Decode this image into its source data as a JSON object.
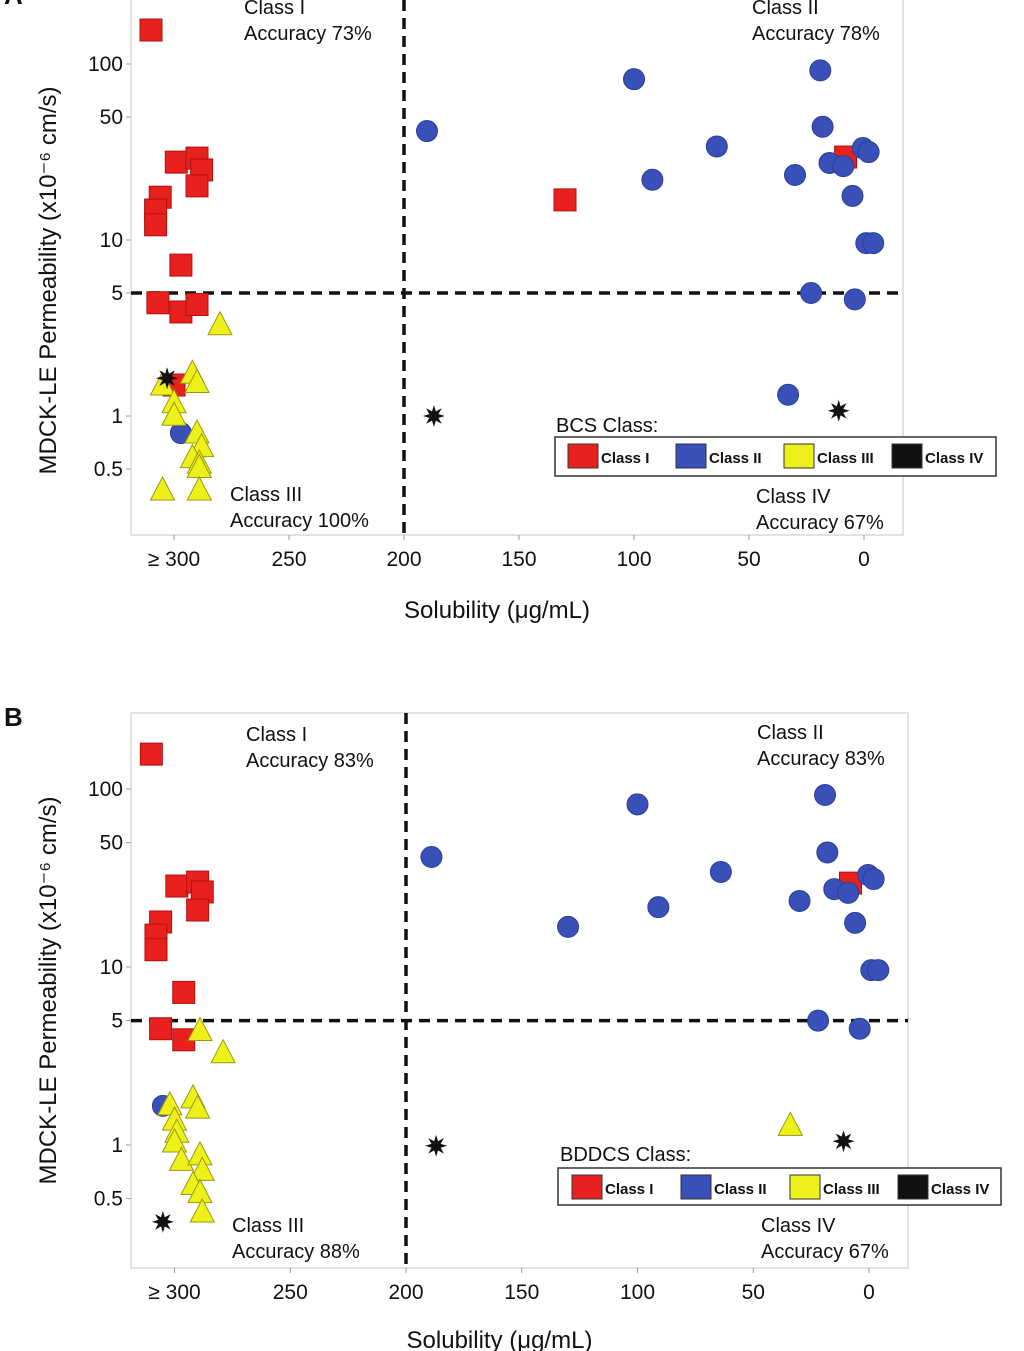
{
  "chart_data": [
    {
      "type": "scatter",
      "panel_label": "A",
      "xlabel": "Solubility (μg/mL)",
      "ylabel": "MDCK-LE Permeability (x10⁻⁶ cm/s)",
      "x_reversed": true,
      "y_scale": "log",
      "xlim": [
        -17,
        319
      ],
      "ylim": [
        0.21,
        231
      ],
      "x_ticks": [
        {
          "value": 300,
          "label": "≥ 300"
        },
        {
          "value": 250,
          "label": "250"
        },
        {
          "value": 200,
          "label": "200"
        },
        {
          "value": 150,
          "label": "150"
        },
        {
          "value": 100,
          "label": "100"
        },
        {
          "value": 50,
          "label": "50"
        },
        {
          "value": 0,
          "label": "0"
        }
      ],
      "y_ticks": [
        {
          "value": 100,
          "label": "100"
        },
        {
          "value": 50,
          "label": "50"
        },
        {
          "value": 10,
          "label": "10"
        },
        {
          "value": 5,
          "label": "5"
        },
        {
          "value": 1,
          "label": "1"
        },
        {
          "value": 0.5,
          "label": "0.5"
        }
      ],
      "thresholds": {
        "x": 200,
        "y": 5
      },
      "grid": false,
      "legend": {
        "title": "BCS Class:",
        "placement": "bottom-right"
      },
      "annotations": [
        {
          "quadrant": "top-left",
          "lines": [
            "Class I",
            "Accuracy 73%"
          ]
        },
        {
          "quadrant": "top-right",
          "lines": [
            "Class II",
            "Accuracy 78%"
          ]
        },
        {
          "quadrant": "bottom-left",
          "lines": [
            "Class III",
            "Accuracy 100%"
          ]
        },
        {
          "quadrant": "bottom-right",
          "lines": [
            "Class IV",
            "Accuracy 67%"
          ]
        }
      ],
      "series": [
        {
          "name": "Class I",
          "marker": "square",
          "color": "#e8211f",
          "points": [
            [
              310,
              156
            ],
            [
              299,
              27.7
            ],
            [
              290,
              29.2
            ],
            [
              288,
              25
            ],
            [
              290,
              20.3
            ],
            [
              306,
              17.5
            ],
            [
              308,
              14.8
            ],
            [
              308,
              12.2
            ],
            [
              297,
              7.2
            ],
            [
              307,
              4.4
            ],
            [
              297,
              3.9
            ],
            [
              290,
              4.3
            ],
            [
              300,
              1.5
            ],
            [
              130,
              16.9
            ],
            [
              8,
              29.6
            ]
          ]
        },
        {
          "name": "Class II",
          "marker": "circle",
          "color": "#3850b8",
          "points": [
            [
              190,
              41.6
            ],
            [
              100,
              82
            ],
            [
              92,
              22
            ],
            [
              64,
              34
            ],
            [
              30,
              23.4
            ],
            [
              19,
              92
            ],
            [
              18,
              44
            ],
            [
              15,
              27.4
            ],
            [
              9,
              26.3
            ],
            [
              5,
              17.8
            ],
            [
              0.5,
              33.3
            ],
            [
              -2,
              31.6
            ],
            [
              -1,
              9.6
            ],
            [
              -4,
              9.6
            ],
            [
              23,
              5.0
            ],
            [
              4,
              4.6
            ],
            [
              33,
              1.32
            ],
            [
              297,
              0.8
            ]
          ]
        },
        {
          "name": "Class III",
          "marker": "triangle",
          "color": "#eef01a",
          "points": [
            [
              280,
              3.3
            ],
            [
              292,
              1.75
            ],
            [
              290,
              1.55
            ],
            [
              305,
              1.5
            ],
            [
              300,
              1.19
            ],
            [
              300,
              1.01
            ],
            [
              290,
              0.8
            ],
            [
              288,
              0.67
            ],
            [
              292,
              0.58
            ],
            [
              289,
              0.54
            ],
            [
              289,
              0.51
            ],
            [
              305,
              0.38
            ],
            [
              289,
              0.38
            ]
          ]
        },
        {
          "name": "Class IV",
          "marker": "star",
          "color": "#111111",
          "points": [
            [
              303,
              1.64
            ],
            [
              187,
              1.0
            ],
            [
              11,
              1.07
            ]
          ]
        }
      ]
    },
    {
      "type": "scatter",
      "panel_label": "B",
      "xlabel": "Solubility (μg/mL)",
      "ylabel": "MDCK-LE Permeability (x10⁻⁶ cm/s)",
      "x_reversed": true,
      "y_scale": "log",
      "xlim": [
        -17,
        319
      ],
      "ylim": [
        0.2,
        267
      ],
      "x_ticks": [
        {
          "value": 300,
          "label": "≥ 300"
        },
        {
          "value": 250,
          "label": "250"
        },
        {
          "value": 200,
          "label": "200"
        },
        {
          "value": 150,
          "label": "150"
        },
        {
          "value": 100,
          "label": "100"
        },
        {
          "value": 50,
          "label": "50"
        },
        {
          "value": 0,
          "label": "0"
        }
      ],
      "y_ticks": [
        {
          "value": 100,
          "label": "100"
        },
        {
          "value": 50,
          "label": "50"
        },
        {
          "value": 10,
          "label": "10"
        },
        {
          "value": 5,
          "label": "5"
        },
        {
          "value": 1,
          "label": "1"
        },
        {
          "value": 0.5,
          "label": "0.5"
        }
      ],
      "thresholds": {
        "x": 200,
        "y": 5
      },
      "grid": false,
      "legend": {
        "title": "BDDCS Class:",
        "placement": "bottom-right"
      },
      "annotations": [
        {
          "quadrant": "top-left",
          "lines": [
            "Class I",
            "Accuracy 83%"
          ]
        },
        {
          "quadrant": "top-right",
          "lines": [
            "Class II",
            "Accuracy 83%"
          ]
        },
        {
          "quadrant": "bottom-left",
          "lines": [
            "Class III",
            "Accuracy 88%"
          ]
        },
        {
          "quadrant": "bottom-right",
          "lines": [
            "Class IV",
            "Accuracy 67%"
          ]
        }
      ],
      "series": [
        {
          "name": "Class I",
          "marker": "square",
          "color": "#e8211f",
          "points": [
            [
              310,
              157
            ],
            [
              299,
              28.5
            ],
            [
              290,
              30
            ],
            [
              288,
              26.4
            ],
            [
              290,
              20.9
            ],
            [
              306,
              17.9
            ],
            [
              308,
              15.1
            ],
            [
              308,
              12.5
            ],
            [
              296,
              7.2
            ],
            [
              306,
              4.5
            ],
            [
              296,
              3.9
            ],
            [
              8,
              29.6
            ]
          ]
        },
        {
          "name": "Class II",
          "marker": "circle",
          "color": "#3850b8",
          "points": [
            [
              189,
              41.5
            ],
            [
              100,
              82
            ],
            [
              91,
              21.7
            ],
            [
              64,
              34.2
            ],
            [
              30,
              23.5
            ],
            [
              19,
              92.5
            ],
            [
              18,
              44
            ],
            [
              15,
              27.4
            ],
            [
              9,
              26.1
            ],
            [
              6,
              17.7
            ],
            [
              0.4,
              32.9
            ],
            [
              -2,
              31.2
            ],
            [
              -1,
              9.6
            ],
            [
              -4,
              9.6
            ],
            [
              22,
              5.0
            ],
            [
              4,
              4.5
            ],
            [
              130,
              16.8
            ],
            [
              305,
              1.66
            ]
          ]
        },
        {
          "name": "Class III",
          "marker": "triangle",
          "color": "#eef01a",
          "points": [
            [
              289,
              4.4
            ],
            [
              279,
              3.3
            ],
            [
              302,
              1.68
            ],
            [
              292,
              1.84
            ],
            [
              290,
              1.61
            ],
            [
              300,
              1.38
            ],
            [
              299,
              1.18
            ],
            [
              300,
              1.04
            ],
            [
              297,
              0.82
            ],
            [
              289,
              0.88
            ],
            [
              288,
              0.72
            ],
            [
              292,
              0.6
            ],
            [
              289,
              0.54
            ],
            [
              288,
              0.42
            ],
            [
              34,
              1.29
            ]
          ]
        },
        {
          "name": "Class IV",
          "marker": "star",
          "color": "#111111",
          "points": [
            [
              305,
              0.37
            ],
            [
              187,
              0.99
            ],
            [
              11,
              1.05
            ]
          ]
        }
      ]
    }
  ]
}
